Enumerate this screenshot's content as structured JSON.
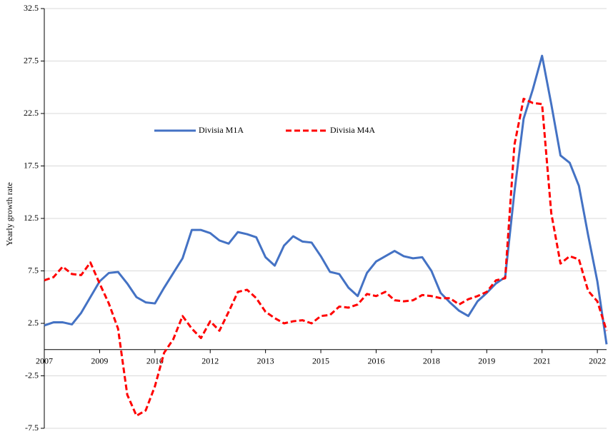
{
  "chart_data": {
    "type": "line",
    "y_label": "Yearly growth rate",
    "categories": [
      "2007",
      null,
      null,
      null,
      null,
      null,
      "2009",
      null,
      null,
      null,
      null,
      null,
      "2010",
      null,
      null,
      null,
      null,
      null,
      "2012",
      null,
      null,
      null,
      null,
      null,
      "2013",
      null,
      null,
      null,
      null,
      null,
      "2015",
      null,
      null,
      null,
      null,
      null,
      "2016",
      null,
      null,
      null,
      null,
      null,
      "2018",
      null,
      null,
      null,
      null,
      null,
      "2019",
      null,
      null,
      null,
      null,
      null,
      "2021",
      null,
      null,
      null,
      null,
      null,
      "2022",
      null
    ],
    "series": [
      {
        "name": "Divisia M1A",
        "color": "#4472c4",
        "dash": false,
        "values": [
          2.3,
          2.6,
          2.6,
          2.4,
          3.5,
          5.0,
          6.5,
          7.3,
          7.4,
          6.3,
          5.0,
          4.5,
          4.4,
          5.9,
          7.3,
          8.7,
          11.4,
          11.4,
          11.1,
          10.4,
          10.1,
          11.2,
          11.0,
          10.7,
          8.8,
          8.0,
          9.9,
          10.8,
          10.3,
          10.2,
          8.9,
          7.4,
          7.2,
          5.9,
          5.1,
          7.3,
          8.4,
          8.9,
          9.4,
          8.9,
          8.7,
          8.8,
          7.5,
          5.4,
          4.5,
          3.7,
          3.2,
          4.6,
          5.4,
          6.3,
          6.9,
          15.0,
          22.0,
          24.8,
          28.0,
          23.4,
          18.5,
          17.8,
          15.6,
          10.9,
          6.5,
          0.5
        ]
      },
      {
        "name": "Divisia M4A",
        "color": "#ff0000",
        "dash": true,
        "values": [
          6.6,
          6.9,
          7.9,
          7.2,
          7.1,
          8.3,
          6.3,
          4.4,
          2.0,
          -4.3,
          -6.3,
          -5.8,
          -3.5,
          -0.3,
          1.0,
          3.2,
          2.0,
          1.1,
          2.7,
          1.8,
          3.6,
          5.5,
          5.7,
          4.9,
          3.6,
          3.0,
          2.5,
          2.7,
          2.8,
          2.5,
          3.2,
          3.3,
          4.1,
          4.0,
          4.3,
          5.3,
          5.1,
          5.5,
          4.7,
          4.6,
          4.7,
          5.2,
          5.1,
          4.9,
          4.9,
          4.3,
          4.8,
          5.1,
          5.5,
          6.6,
          6.8,
          19.5,
          23.9,
          23.5,
          23.4,
          13.0,
          8.2,
          8.9,
          8.6,
          5.6,
          4.6,
          1.8
        ]
      }
    ],
    "ylim": [
      -7.5,
      32.5
    ],
    "yticks": [
      -7.5,
      -2.5,
      2.5,
      7.5,
      12.5,
      17.5,
      22.5,
      27.5,
      32.5
    ],
    "grid": true,
    "legend": "top"
  }
}
